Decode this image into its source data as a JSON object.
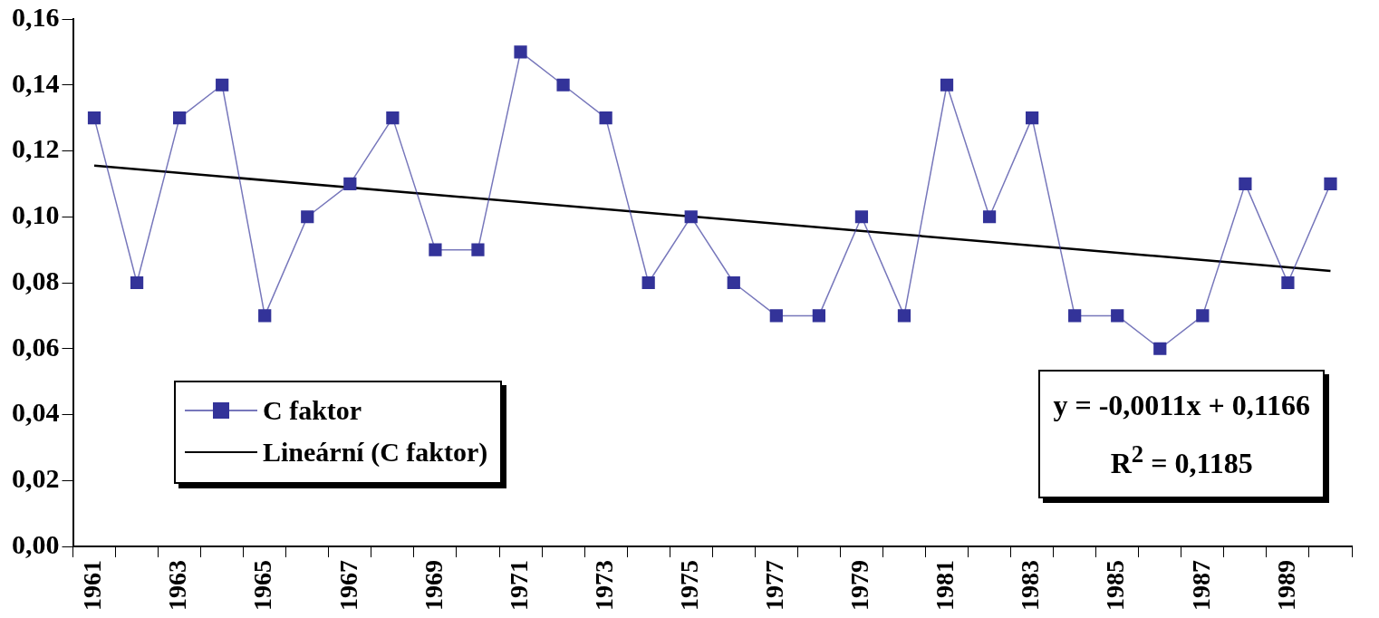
{
  "chart_data": {
    "type": "line",
    "categories": [
      "1961",
      null,
      "1963",
      null,
      "1965",
      null,
      "1967",
      null,
      "1969",
      null,
      "1971",
      null,
      "1973",
      null,
      "1975",
      null,
      "1977",
      null,
      "1979",
      null,
      "1981",
      null,
      "1983",
      null,
      "1985",
      null,
      "1987",
      null,
      "1989",
      null
    ],
    "series": [
      {
        "name": "C faktor",
        "color": "#333399",
        "marker": "square",
        "values": [
          0.13,
          0.08,
          0.13,
          0.14,
          0.07,
          0.1,
          0.11,
          0.13,
          0.09,
          0.09,
          0.15,
          0.14,
          0.13,
          0.08,
          0.1,
          0.08,
          0.07,
          0.07,
          0.1,
          0.07,
          0.14,
          0.1,
          0.13,
          0.07,
          0.07,
          0.06,
          0.07,
          0.11,
          0.08,
          0.11
        ]
      },
      {
        "name": "Lineární (C faktor)",
        "color": "#000000",
        "marker": "none",
        "values": [
          0.1155,
          null,
          null,
          null,
          null,
          null,
          null,
          null,
          null,
          null,
          null,
          null,
          null,
          null,
          null,
          null,
          null,
          null,
          null,
          null,
          null,
          null,
          null,
          null,
          null,
          null,
          null,
          null,
          null,
          0.0836
        ]
      }
    ],
    "ylim": [
      0,
      0.16
    ],
    "yticks": [
      {
        "value": 0,
        "label": "0,00"
      },
      {
        "value": 0.02,
        "label": "0,02"
      },
      {
        "value": 0.04,
        "label": "0,04"
      },
      {
        "value": 0.06,
        "label": "0,06"
      },
      {
        "value": 0.08,
        "label": "0,08"
      },
      {
        "value": 0.1,
        "label": "0,10"
      },
      {
        "value": 0.12,
        "label": "0,12"
      },
      {
        "value": 0.14,
        "label": "0,14"
      },
      {
        "value": 0.16,
        "label": "0,16"
      }
    ],
    "grid": false,
    "legend": "bottom left",
    "line_style": "solid",
    "annotations": [
      "y = -0,0011x + 0,1166",
      "R$^{2}$ = 0,1185"
    ]
  }
}
